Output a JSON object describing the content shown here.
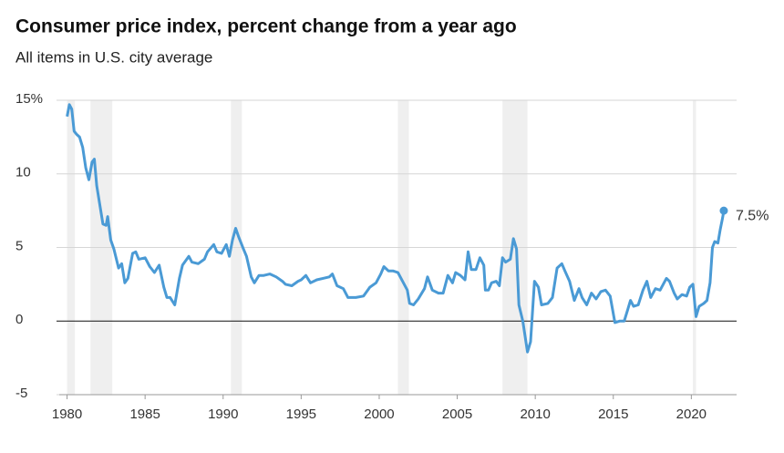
{
  "chart_data": {
    "type": "line",
    "title": "Consumer price index, percent change from a year ago",
    "subtitle": "All items in U.S. city average",
    "xlim": [
      1979.5,
      2022.9
    ],
    "xticks": [
      1980,
      1985,
      1990,
      1995,
      2000,
      2005,
      2010,
      2015,
      2020
    ],
    "ylim": [
      -5,
      15
    ],
    "yticks": [
      -5,
      0,
      5,
      10,
      {
        "value": 15,
        "label": "15%"
      }
    ],
    "grid": true,
    "recessions": [
      [
        1980.0,
        1980.5
      ],
      [
        1981.5,
        1982.9
      ],
      [
        1990.5,
        1991.2
      ],
      [
        2001.2,
        2001.9
      ],
      [
        2007.9,
        2009.5
      ],
      [
        2020.1,
        2020.3
      ]
    ],
    "recession_color": "#efefef",
    "annotation": "7.5%",
    "series": [
      {
        "name": "CPI",
        "color": "#4a9ad5",
        "x": [
          1980.0,
          1980.15,
          1980.3,
          1980.45,
          1980.6,
          1980.8,
          1981.0,
          1981.2,
          1981.4,
          1981.6,
          1981.75,
          1981.9,
          1982.1,
          1982.3,
          1982.5,
          1982.6,
          1982.8,
          1983.0,
          1983.3,
          1983.5,
          1983.7,
          1983.9,
          1984.2,
          1984.4,
          1984.6,
          1985.0,
          1985.3,
          1985.6,
          1985.9,
          1986.2,
          1986.4,
          1986.6,
          1986.9,
          1987.2,
          1987.4,
          1987.8,
          1988.0,
          1988.4,
          1988.8,
          1989.0,
          1989.4,
          1989.6,
          1989.9,
          1990.2,
          1990.4,
          1990.6,
          1990.8,
          1991.0,
          1991.3,
          1991.5,
          1991.8,
          1992.0,
          1992.3,
          1992.6,
          1993.0,
          1993.4,
          1993.8,
          1994.0,
          1994.4,
          1994.8,
          1995.0,
          1995.3,
          1995.6,
          1996.0,
          1996.4,
          1996.8,
          1997.0,
          1997.3,
          1997.7,
          1998.0,
          1998.5,
          1999.0,
          1999.4,
          1999.8,
          2000.1,
          2000.3,
          2000.6,
          2000.9,
          2001.2,
          2001.5,
          2001.8,
          2001.95,
          2002.2,
          2002.5,
          2002.9,
          2003.1,
          2003.4,
          2003.8,
          2004.1,
          2004.4,
          2004.7,
          2004.9,
          2005.2,
          2005.5,
          2005.7,
          2005.9,
          2006.2,
          2006.45,
          2006.7,
          2006.8,
          2007.0,
          2007.2,
          2007.5,
          2007.7,
          2007.9,
          2008.1,
          2008.4,
          2008.6,
          2008.8,
          2008.95,
          2009.2,
          2009.5,
          2009.7,
          2009.95,
          2010.2,
          2010.4,
          2010.8,
          2011.1,
          2011.4,
          2011.7,
          2011.9,
          2012.2,
          2012.5,
          2012.8,
          2013.0,
          2013.3,
          2013.6,
          2013.9,
          2014.2,
          2014.5,
          2014.8,
          2014.95,
          2015.1,
          2015.4,
          2015.7,
          2015.9,
          2016.1,
          2016.3,
          2016.6,
          2016.9,
          2017.15,
          2017.4,
          2017.7,
          2018.0,
          2018.4,
          2018.6,
          2018.9,
          2019.1,
          2019.4,
          2019.7,
          2019.9,
          2020.1,
          2020.3,
          2020.5,
          2020.8,
          2021.0,
          2021.2,
          2021.35,
          2021.5,
          2021.7,
          2021.85,
          2022.0,
          2022.08
        ],
        "values": [
          13.9,
          14.7,
          14.4,
          12.9,
          12.7,
          12.5,
          11.8,
          10.4,
          9.6,
          10.8,
          11.0,
          9.2,
          7.9,
          6.6,
          6.5,
          7.1,
          5.5,
          4.9,
          3.6,
          3.9,
          2.6,
          2.9,
          4.6,
          4.7,
          4.2,
          4.3,
          3.7,
          3.3,
          3.8,
          2.3,
          1.6,
          1.6,
          1.1,
          2.9,
          3.8,
          4.4,
          4.0,
          3.9,
          4.2,
          4.7,
          5.2,
          4.7,
          4.6,
          5.2,
          4.4,
          5.5,
          6.3,
          5.7,
          4.9,
          4.4,
          3.0,
          2.6,
          3.1,
          3.1,
          3.2,
          3.0,
          2.7,
          2.5,
          2.4,
          2.7,
          2.8,
          3.1,
          2.6,
          2.8,
          2.9,
          3.0,
          3.2,
          2.4,
          2.2,
          1.6,
          1.6,
          1.7,
          2.3,
          2.6,
          3.2,
          3.7,
          3.4,
          3.4,
          3.3,
          2.7,
          2.1,
          1.2,
          1.1,
          1.5,
          2.2,
          3.0,
          2.1,
          1.9,
          1.9,
          3.1,
          2.6,
          3.3,
          3.1,
          2.8,
          4.7,
          3.5,
          3.5,
          4.3,
          3.8,
          2.1,
          2.1,
          2.6,
          2.7,
          2.4,
          4.3,
          4.0,
          4.2,
          5.6,
          4.9,
          1.1,
          0.0,
          -2.1,
          -1.4,
          2.7,
          2.3,
          1.1,
          1.2,
          1.6,
          3.6,
          3.9,
          3.4,
          2.7,
          1.4,
          2.2,
          1.6,
          1.1,
          1.9,
          1.5,
          2.0,
          2.1,
          1.7,
          0.8,
          -0.1,
          0.0,
          0.0,
          0.7,
          1.4,
          1.0,
          1.1,
          2.1,
          2.7,
          1.6,
          2.2,
          2.1,
          2.9,
          2.7,
          1.9,
          1.5,
          1.8,
          1.7,
          2.3,
          2.5,
          0.3,
          1.0,
          1.2,
          1.4,
          2.6,
          5.0,
          5.4,
          5.3,
          6.2,
          7.0,
          7.5
        ]
      }
    ]
  }
}
